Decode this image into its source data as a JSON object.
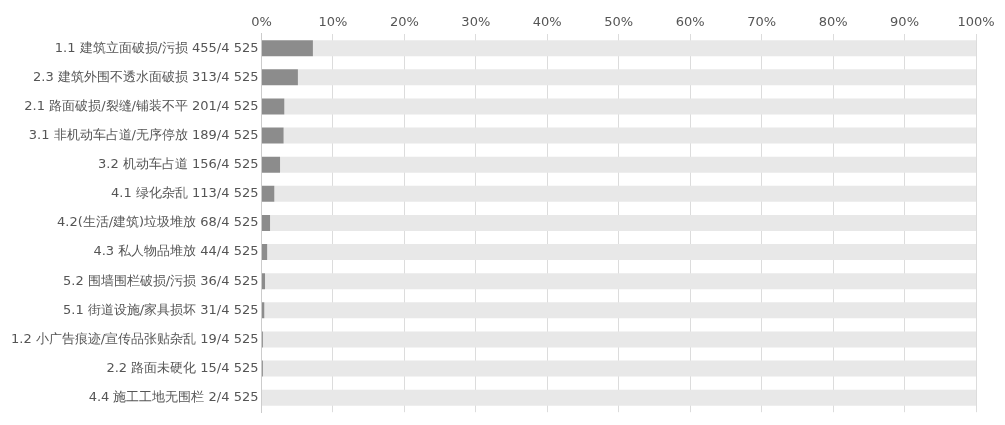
{
  "chart_data": {
    "type": "bar",
    "orientation": "horizontal",
    "categories": [
      "1.1 建筑立面破损/污损 455/4 525",
      "2.3 建筑外围不透水面破损 313/4 525",
      "2.1 路面破损/裂缝/铺装不平 201/4 525",
      "3.1 非机动车占道/无序停放 189/4 525",
      "3.2 机动车占道 156/4 525",
      "4.1 绿化杂乱 113/4 525",
      "4.2(生活/建筑)垃圾堆放 68/4 525",
      "4.3 私人物品堆放 44/4 525",
      "5.2 围墙围栏破损/污损 36/4 525",
      "5.1 街道设施/家具损坏 31/4 525",
      "1.2 小广告痕迹/宣传品张贴杂乱 19/4 525",
      "2.2 路面未硬化 15/4 525",
      "4.4 施工工地无围栏 2/4 525"
    ],
    "series": [
      {
        "color": "#8c8c8c",
        "values": [
          7.2,
          5.1,
          3.2,
          3.1,
          2.6,
          1.8,
          1.2,
          0.8,
          0.5,
          0.4,
          0.2,
          0.2,
          0
        ]
      },
      {
        "color": "#e8e8e8",
        "values": [
          92.8,
          94.9,
          96.8,
          96.9,
          97.4,
          98.2,
          98.8,
          99.2,
          99.5,
          99.6,
          99.8,
          99.8,
          100
        ]
      }
    ],
    "stacked": true,
    "xlim": [
      0,
      100
    ],
    "xticks": [
      {
        "value": 0,
        "label": "0%"
      },
      {
        "value": 10,
        "label": "10%"
      },
      {
        "value": 20,
        "label": "20%"
      },
      {
        "value": 30,
        "label": "30%"
      },
      {
        "value": 40,
        "label": "40%"
      },
      {
        "value": 50,
        "label": "50%"
      },
      {
        "value": 60,
        "label": "60%"
      },
      {
        "value": 70,
        "label": "70%"
      },
      {
        "value": 80,
        "label": "80%"
      },
      {
        "value": 90,
        "label": "90%"
      },
      {
        "value": 100,
        "label": "100%"
      }
    ],
    "grid": "x",
    "legend": false
  }
}
